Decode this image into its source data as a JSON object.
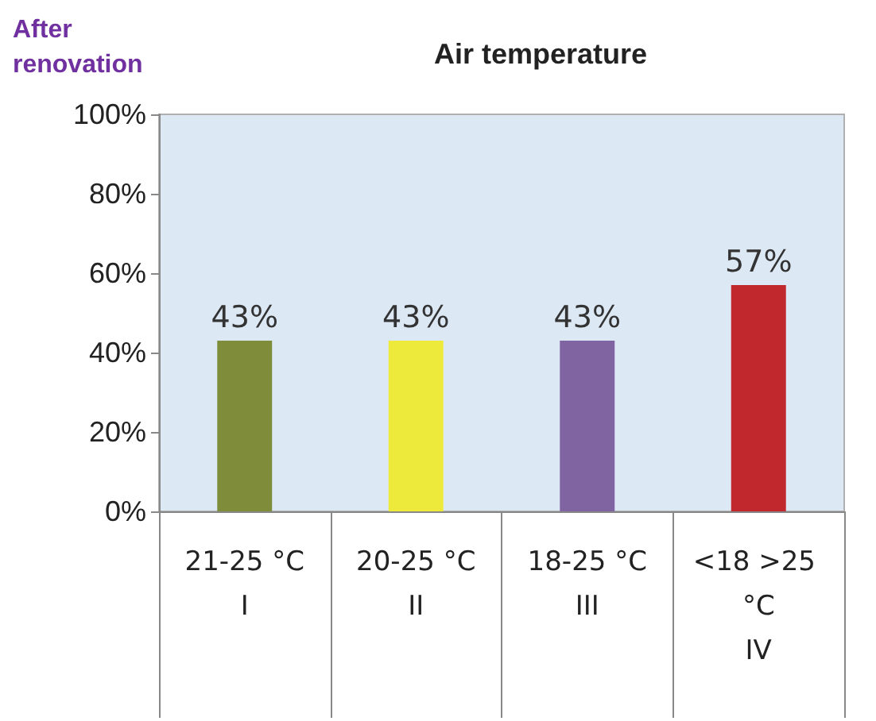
{
  "chart_data": {
    "type": "bar",
    "title": "Air temperature",
    "annotations": [
      "After renovation"
    ],
    "categories": [
      "21-25 °C\nI",
      "20-25 °C\nII",
      "18-25 °C\nIII",
      "<18 >25 °C\nIV"
    ],
    "values": [
      43,
      43,
      43,
      57
    ],
    "colors": [
      "#7f8c3a",
      "#eeea3c",
      "#8064a2",
      "#c0282d"
    ],
    "value_labels": [
      "43%",
      "43%",
      "43%",
      "57%"
    ],
    "ylim": [
      0,
      100
    ],
    "yticks": [
      {
        "value": 0,
        "label": "0%"
      },
      {
        "value": 20,
        "label": "20%"
      },
      {
        "value": 40,
        "label": "40%"
      },
      {
        "value": 60,
        "label": "60%"
      },
      {
        "value": 80,
        "label": "80%"
      },
      {
        "value": 100,
        "label": "100%"
      }
    ],
    "grid": false
  }
}
